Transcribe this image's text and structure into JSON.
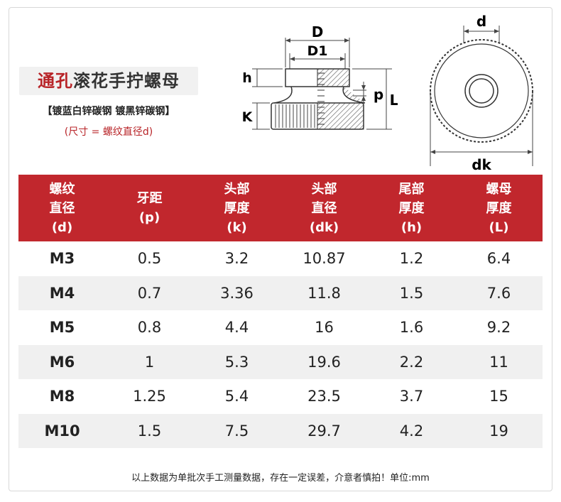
{
  "title": {
    "red_part": "通孔",
    "dark_part": "滚花手拧螺母"
  },
  "subtitle": "【镀蓝白锌碳钢 镀黑锌碳钢】",
  "size_note": "(尺寸 = 螺纹直径d)",
  "diagram_labels": {
    "D": "D",
    "D1": "D1",
    "h": "h",
    "K": "K",
    "p": "p",
    "L": "L",
    "d": "d",
    "dk": "dk"
  },
  "table": {
    "headers": [
      [
        "螺纹",
        "直径",
        "(d)"
      ],
      [
        "牙距",
        "(p)"
      ],
      [
        "头部",
        "厚度",
        "(k)"
      ],
      [
        "头部",
        "直径",
        "(dk)"
      ],
      [
        "尾部",
        "厚度",
        "(h)"
      ],
      [
        "螺母",
        "厚度",
        "(L)"
      ]
    ],
    "rows": [
      [
        "M3",
        "0.5",
        "3.2",
        "10.87",
        "1.2",
        "6.4"
      ],
      [
        "M4",
        "0.7",
        "3.36",
        "11.8",
        "1.5",
        "7.6"
      ],
      [
        "M5",
        "0.8",
        "4.4",
        "16",
        "1.6",
        "9.2"
      ],
      [
        "M6",
        "1",
        "5.3",
        "19.6",
        "2.2",
        "11"
      ],
      [
        "M8",
        "1.25",
        "5.4",
        "23.5",
        "3.7",
        "15"
      ],
      [
        "M10",
        "1.5",
        "7.5",
        "29.7",
        "4.2",
        "19"
      ]
    ]
  },
  "footer": "以上数据为单批次手工测量数据，存在一定误差，介意者慎拍！单位:mm"
}
